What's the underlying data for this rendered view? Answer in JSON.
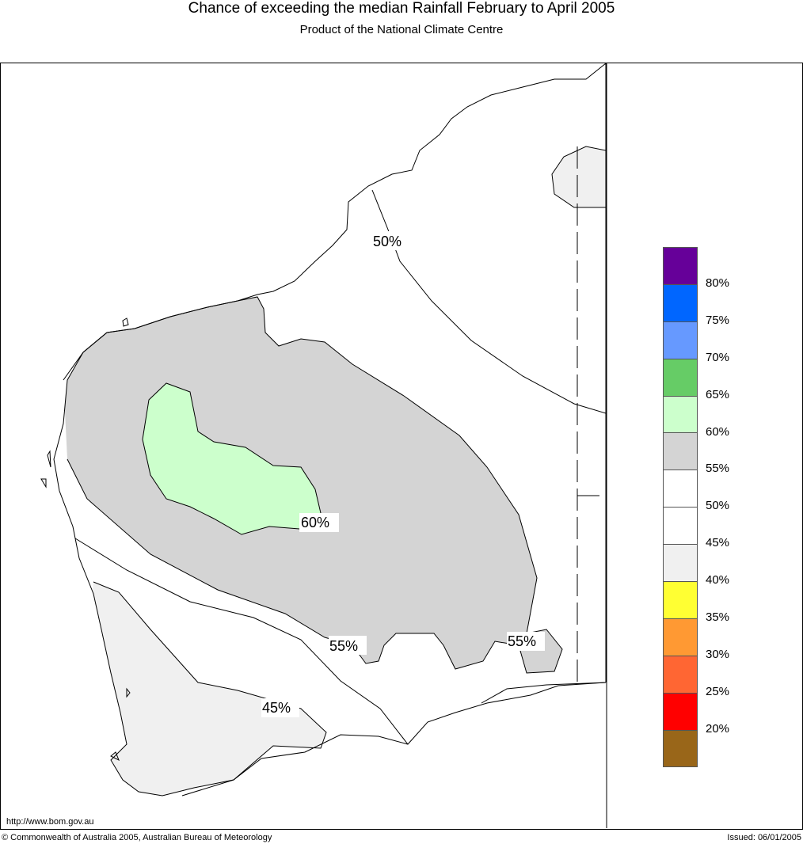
{
  "title": "Chance of exceeding the median Rainfall February to April 2005",
  "subtitle": "Product of the National Climate Centre",
  "url": "http://www.bom.gov.au",
  "copyright": "© Commonwealth of Australia 2005, Australian Bureau of Meteorology",
  "issued": "Issued: 06/01/2005",
  "contour_labels": [
    "50%",
    "60%",
    "55%",
    "55%",
    "45%"
  ],
  "legend": {
    "colors": [
      "#660099",
      "#0066ff",
      "#6699ff",
      "#66cc66",
      "#ccffcc",
      "#d4d4d4",
      "#ffffff",
      "#ffffff",
      "#f0f0f0",
      "#ffff33",
      "#ff9933",
      "#ff6633",
      "#ff0000",
      "#996619"
    ],
    "labels": [
      "80%",
      "75%",
      "70%",
      "65%",
      "60%",
      "55%",
      "50%",
      "45%",
      "40%",
      "35%",
      "30%",
      "25%",
      "20%"
    ]
  }
}
